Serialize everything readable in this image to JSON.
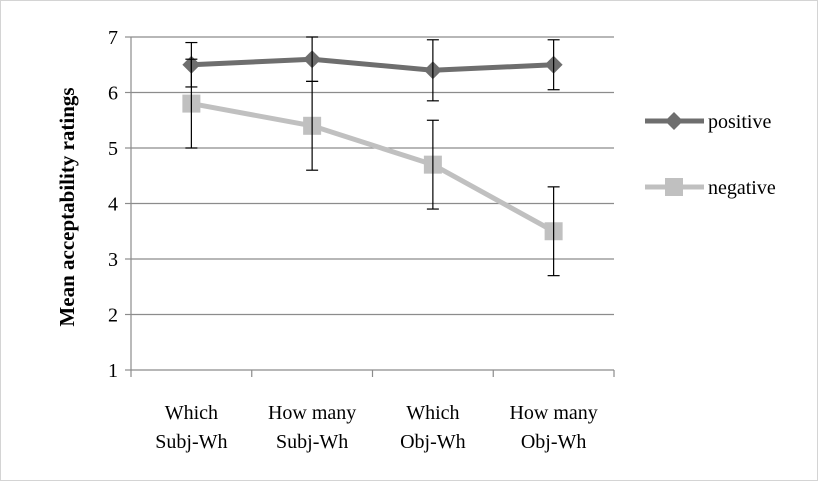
{
  "chart_data": {
    "type": "line",
    "title": "",
    "xlabel": "",
    "ylabel": "Mean acceptability ratings",
    "ylim": [
      1,
      7
    ],
    "yticks": [
      "1",
      "2",
      "3",
      "4",
      "5",
      "6",
      "7"
    ],
    "grid": "horizontal",
    "legend_position": "right",
    "categories": [
      [
        "Which",
        "Subj-Wh"
      ],
      [
        "How many",
        "Subj-Wh"
      ],
      [
        "Which",
        "Obj-Wh"
      ],
      [
        "How many",
        "Obj-Wh"
      ]
    ],
    "series": [
      {
        "name": "positive",
        "marker": "diamond",
        "color": "#6e6e6e",
        "values": [
          6.5,
          6.6,
          6.4,
          6.5
        ],
        "error": [
          0.4,
          0.4,
          0.55,
          0.45
        ]
      },
      {
        "name": "negative",
        "marker": "square",
        "color": "#c0c0c0",
        "values": [
          5.8,
          5.4,
          4.7,
          3.5
        ],
        "error": [
          0.8,
          0.8,
          0.8,
          0.8
        ]
      }
    ]
  }
}
